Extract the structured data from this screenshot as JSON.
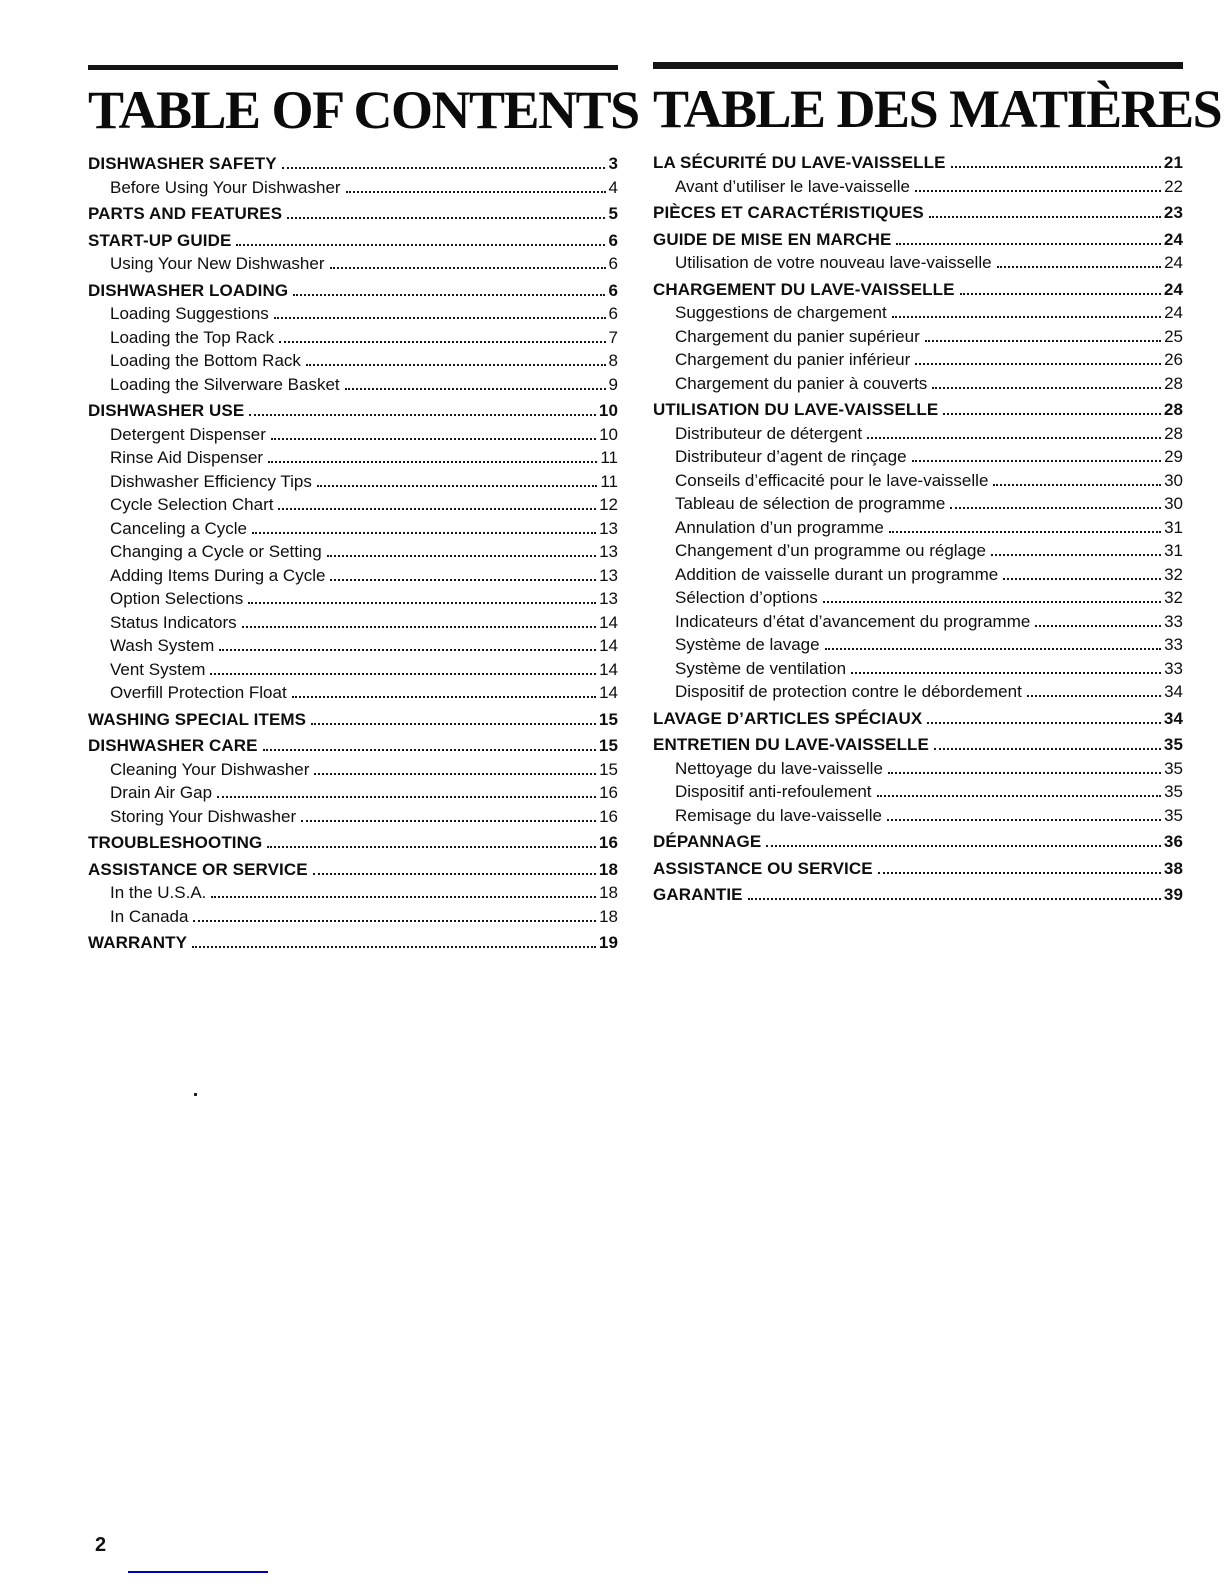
{
  "page": {
    "number": "2"
  },
  "colors": {
    "ink": "#0e0e0e",
    "rule_black": "#141414",
    "footer_underline_blue": "#0000b8"
  },
  "left_column": {
    "title": "TABLE OF CONTENTS",
    "entries": [
      {
        "label": "DISHWASHER SAFETY",
        "page": "3",
        "level": "main"
      },
      {
        "label": "Before Using Your Dishwasher",
        "page": "4",
        "level": "sub"
      },
      {
        "label": "PARTS AND FEATURES",
        "page": "5",
        "level": "main"
      },
      {
        "label": "START-UP GUIDE",
        "page": "6",
        "level": "main"
      },
      {
        "label": "Using Your New Dishwasher",
        "page": "6",
        "level": "sub"
      },
      {
        "label": "DISHWASHER LOADING",
        "page": "6",
        "level": "main"
      },
      {
        "label": "Loading Suggestions",
        "page": "6",
        "level": "sub"
      },
      {
        "label": "Loading the Top Rack",
        "page": "7",
        "level": "sub"
      },
      {
        "label": "Loading the Bottom Rack",
        "page": "8",
        "level": "sub"
      },
      {
        "label": "Loading the Silverware Basket",
        "page": "9",
        "level": "sub"
      },
      {
        "label": "DISHWASHER USE",
        "page": "10",
        "level": "main"
      },
      {
        "label": "Detergent Dispenser",
        "page": "10",
        "level": "sub"
      },
      {
        "label": "Rinse Aid Dispenser",
        "page": "11",
        "level": "sub"
      },
      {
        "label": "Dishwasher Efficiency Tips",
        "page": "11",
        "level": "sub"
      },
      {
        "label": "Cycle Selection Chart",
        "page": "12",
        "level": "sub"
      },
      {
        "label": "Canceling a Cycle",
        "page": "13",
        "level": "sub"
      },
      {
        "label": "Changing a Cycle or Setting",
        "page": "13",
        "level": "sub"
      },
      {
        "label": "Adding Items During a Cycle",
        "page": "13",
        "level": "sub"
      },
      {
        "label": "Option Selections",
        "page": "13",
        "level": "sub"
      },
      {
        "label": "Status Indicators",
        "page": "14",
        "level": "sub"
      },
      {
        "label": "Wash System",
        "page": "14",
        "level": "sub"
      },
      {
        "label": "Vent System",
        "page": "14",
        "level": "sub"
      },
      {
        "label": "Overfill Protection Float",
        "page": "14",
        "level": "sub"
      },
      {
        "label": "WASHING SPECIAL ITEMS",
        "page": "15",
        "level": "main"
      },
      {
        "label": "DISHWASHER CARE",
        "page": "15",
        "level": "main"
      },
      {
        "label": "Cleaning Your Dishwasher",
        "page": "15",
        "level": "sub"
      },
      {
        "label": "Drain Air Gap",
        "page": "16",
        "level": "sub"
      },
      {
        "label": "Storing Your Dishwasher",
        "page": "16",
        "level": "sub"
      },
      {
        "label": "TROUBLESHOOTING",
        "page": "16",
        "level": "main"
      },
      {
        "label": "ASSISTANCE OR SERVICE",
        "page": "18",
        "level": "main"
      },
      {
        "label": "In the U.S.A.",
        "page": "18",
        "level": "sub"
      },
      {
        "label": "In Canada",
        "page": "18",
        "level": "sub"
      },
      {
        "label": "WARRANTY",
        "page": "19",
        "level": "main"
      }
    ]
  },
  "right_column": {
    "title": "TABLE DES MATIÈRES",
    "entries": [
      {
        "label": "LA SÉCURITÉ DU LAVE-VAISSELLE",
        "page": "21",
        "level": "main"
      },
      {
        "label": "Avant d’utiliser le lave-vaisselle",
        "page": "22",
        "level": "sub"
      },
      {
        "label": "PIÈCES ET CARACTÉRISTIQUES",
        "page": "23",
        "level": "main"
      },
      {
        "label": "GUIDE DE MISE EN MARCHE",
        "page": "24",
        "level": "main"
      },
      {
        "label": "Utilisation de votre nouveau lave-vaisselle",
        "page": "24",
        "level": "sub"
      },
      {
        "label": "CHARGEMENT DU LAVE-VAISSELLE",
        "page": "24",
        "level": "main"
      },
      {
        "label": "Suggestions de chargement",
        "page": "24",
        "level": "sub"
      },
      {
        "label": "Chargement du panier supérieur",
        "page": "25",
        "level": "sub"
      },
      {
        "label": "Chargement du panier inférieur",
        "page": "26",
        "level": "sub"
      },
      {
        "label": "Chargement du panier à couverts",
        "page": "28",
        "level": "sub"
      },
      {
        "label": "UTILISATION DU LAVE-VAISSELLE",
        "page": "28",
        "level": "main"
      },
      {
        "label": "Distributeur de détergent",
        "page": "28",
        "level": "sub"
      },
      {
        "label": "Distributeur d’agent de rinçage",
        "page": "29",
        "level": "sub"
      },
      {
        "label": "Conseils d’efficacité pour le lave-vaisselle",
        "page": "30",
        "level": "sub"
      },
      {
        "label": "Tableau de sélection de programme",
        "page": "30",
        "level": "sub"
      },
      {
        "label": "Annulation d’un programme",
        "page": "31",
        "level": "sub"
      },
      {
        "label": "Changement d’un programme ou réglage",
        "page": "31",
        "level": "sub"
      },
      {
        "label": "Addition de vaisselle durant un programme",
        "page": "32",
        "level": "sub"
      },
      {
        "label": "Sélection d’options",
        "page": "32",
        "level": "sub"
      },
      {
        "label": "Indicateurs d’état d’avancement du programme",
        "page": "33",
        "level": "sub"
      },
      {
        "label": "Système de lavage",
        "page": "33",
        "level": "sub"
      },
      {
        "label": "Système de ventilation",
        "page": "33",
        "level": "sub"
      },
      {
        "label": "Dispositif de protection contre le débordement",
        "page": "34",
        "level": "sub"
      },
      {
        "label": "LAVAGE D’ARTICLES SPÉCIAUX",
        "page": "34",
        "level": "main"
      },
      {
        "label": "ENTRETIEN DU LAVE-VAISSELLE",
        "page": "35",
        "level": "main"
      },
      {
        "label": "Nettoyage du lave-vaisselle",
        "page": "35",
        "level": "sub"
      },
      {
        "label": "Dispositif anti-refoulement",
        "page": "35",
        "level": "sub"
      },
      {
        "label": "Remisage du lave-vaisselle",
        "page": "35",
        "level": "sub"
      },
      {
        "label": "DÉPANNAGE",
        "page": "36",
        "level": "main"
      },
      {
        "label": "ASSISTANCE OU SERVICE",
        "page": "38",
        "level": "main"
      },
      {
        "label": "GARANTIE",
        "page": "39",
        "level": "main"
      }
    ]
  }
}
